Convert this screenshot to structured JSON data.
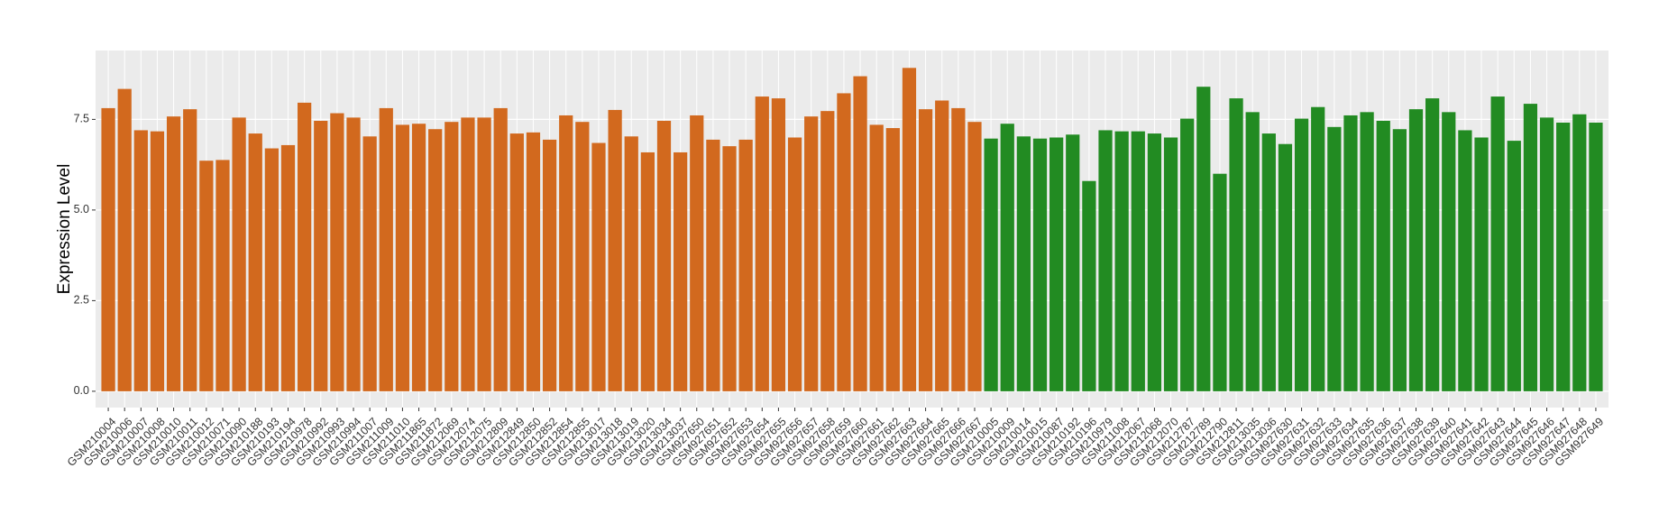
{
  "chart_data": {
    "type": "bar",
    "y_label": "Expression Level",
    "categories": [
      "GSM210004",
      "GSM210006",
      "GSM210007",
      "GSM210008",
      "GSM210010",
      "GSM210011",
      "GSM210012",
      "GSM210071",
      "GSM210090",
      "GSM210188",
      "GSM210193",
      "GSM210194",
      "GSM210978",
      "GSM210992",
      "GSM210993",
      "GSM210994",
      "GSM211007",
      "GSM211009",
      "GSM211010",
      "GSM211865",
      "GSM211872",
      "GSM212069",
      "GSM212074",
      "GSM212075",
      "GSM212809",
      "GSM212849",
      "GSM212850",
      "GSM212852",
      "GSM212854",
      "GSM212855",
      "GSM213017",
      "GSM213018",
      "GSM213019",
      "GSM213020",
      "GSM213034",
      "GSM213037",
      "GSM927650",
      "GSM927651",
      "GSM927652",
      "GSM927653",
      "GSM927654",
      "GSM927655",
      "GSM927656",
      "GSM927657",
      "GSM927658",
      "GSM927659",
      "GSM927660",
      "GSM927661",
      "GSM927662",
      "GSM927663",
      "GSM927664",
      "GSM927665",
      "GSM927666",
      "GSM927667",
      "GSM210005",
      "GSM210009",
      "GSM210014",
      "GSM210015",
      "GSM210087",
      "GSM210192",
      "GSM210196",
      "GSM210979",
      "GSM211008",
      "GSM212067",
      "GSM212068",
      "GSM212070",
      "GSM212787",
      "GSM212789",
      "GSM212790",
      "GSM212811",
      "GSM213035",
      "GSM213036",
      "GSM927630",
      "GSM927631",
      "GSM927632",
      "GSM927633",
      "GSM927634",
      "GSM927635",
      "GSM927636",
      "GSM927637",
      "GSM927638",
      "GSM927639",
      "GSM927640",
      "GSM927641",
      "GSM927642",
      "GSM927643",
      "GSM927644",
      "GSM927645",
      "GSM927646",
      "GSM927647",
      "GSM927648",
      "GSM927649"
    ],
    "values": [
      7.81,
      8.34,
      7.2,
      7.17,
      7.58,
      7.78,
      6.36,
      6.38,
      7.55,
      7.11,
      6.7,
      6.79,
      7.96,
      7.46,
      7.67,
      7.55,
      7.03,
      7.81,
      7.35,
      7.38,
      7.23,
      7.43,
      7.55,
      7.55,
      7.81,
      7.11,
      7.14,
      6.94,
      7.61,
      7.43,
      6.85,
      7.76,
      7.03,
      6.59,
      7.46,
      6.59,
      7.61,
      6.94,
      6.76,
      6.94,
      8.13,
      8.08,
      7.0,
      7.58,
      7.73,
      8.22,
      8.69,
      7.35,
      7.26,
      8.92,
      7.78,
      8.02,
      7.81,
      7.43,
      6.97,
      7.38,
      7.03,
      6.97,
      7.0,
      7.08,
      5.8,
      7.2,
      7.17,
      7.17,
      7.11,
      7.0,
      7.52,
      8.4,
      6.0,
      8.08,
      7.7,
      7.11,
      6.82,
      7.52,
      7.84,
      7.29,
      7.61,
      7.7,
      7.46,
      7.23,
      7.78,
      8.08,
      7.7,
      7.2,
      7.0,
      8.13,
      6.91,
      7.93,
      7.55,
      7.41,
      7.64,
      7.41
    ],
    "colors": [
      "#d2691e",
      "#d2691e",
      "#d2691e",
      "#d2691e",
      "#d2691e",
      "#d2691e",
      "#d2691e",
      "#d2691e",
      "#d2691e",
      "#d2691e",
      "#d2691e",
      "#d2691e",
      "#d2691e",
      "#d2691e",
      "#d2691e",
      "#d2691e",
      "#d2691e",
      "#d2691e",
      "#d2691e",
      "#d2691e",
      "#d2691e",
      "#d2691e",
      "#d2691e",
      "#d2691e",
      "#d2691e",
      "#d2691e",
      "#d2691e",
      "#d2691e",
      "#d2691e",
      "#d2691e",
      "#d2691e",
      "#d2691e",
      "#d2691e",
      "#d2691e",
      "#d2691e",
      "#d2691e",
      "#d2691e",
      "#d2691e",
      "#d2691e",
      "#d2691e",
      "#d2691e",
      "#d2691e",
      "#d2691e",
      "#d2691e",
      "#d2691e",
      "#d2691e",
      "#d2691e",
      "#d2691e",
      "#d2691e",
      "#d2691e",
      "#d2691e",
      "#d2691e",
      "#d2691e",
      "#d2691e",
      "#228b22",
      "#228b22",
      "#228b22",
      "#228b22",
      "#228b22",
      "#228b22",
      "#228b22",
      "#228b22",
      "#228b22",
      "#228b22",
      "#228b22",
      "#228b22",
      "#228b22",
      "#228b22",
      "#228b22",
      "#228b22",
      "#228b22",
      "#228b22",
      "#228b22",
      "#228b22",
      "#228b22",
      "#228b22",
      "#228b22",
      "#228b22",
      "#228b22",
      "#228b22",
      "#228b22",
      "#228b22",
      "#228b22",
      "#228b22",
      "#228b22",
      "#228b22",
      "#228b22",
      "#228b22",
      "#228b22",
      "#228b22",
      "#228b22",
      "#228b22"
    ],
    "ylim": [
      -0.45,
      9.4
    ],
    "yticks": [
      {
        "value": 0,
        "label": "0.0"
      },
      2.5,
      {
        "value": 5,
        "label": "5.0"
      },
      7.5
    ],
    "grid": true
  }
}
